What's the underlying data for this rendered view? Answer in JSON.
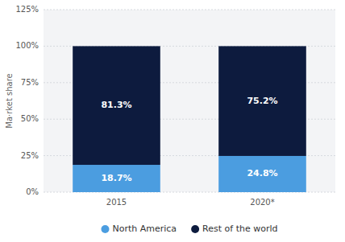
{
  "chart_data": {
    "type": "bar",
    "stacked": true,
    "categories": [
      "2015",
      "2020*"
    ],
    "series": [
      {
        "name": "North America",
        "color": "#4b9de0",
        "values": [
          18.7,
          24.8
        ],
        "value_labels": [
          "18.7%",
          "24.8%"
        ]
      },
      {
        "name": "Rest of the world",
        "color": "#0d1b3e",
        "values": [
          81.3,
          75.2
        ],
        "value_labels": [
          "81.3%",
          "75.2%"
        ]
      }
    ],
    "y_label": "Ma·rket share",
    "ylim": [
      0,
      125
    ],
    "yticks": [
      {
        "value": 0,
        "label": "0%"
      },
      {
        "value": 25,
        "label": "25%"
      },
      {
        "value": 50,
        "label": "50%"
      },
      {
        "value": 75,
        "label": "75%"
      },
      {
        "value": 100,
        "label": "100%"
      },
      {
        "value": 125,
        "label": "125%"
      }
    ],
    "grid": true,
    "data_labels": true,
    "legend": "bottom"
  }
}
